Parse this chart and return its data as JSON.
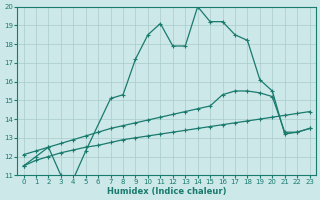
{
  "xlabel": "Humidex (Indice chaleur)",
  "line_color": "#1a7a6e",
  "bg_color": "#cce8e8",
  "grid_color": "#aacccc",
  "ylim": [
    11,
    20
  ],
  "xlim": [
    -0.5,
    23.5
  ],
  "yticks": [
    11,
    12,
    13,
    14,
    15,
    16,
    17,
    18,
    19,
    20
  ],
  "xticks": [
    0,
    1,
    2,
    3,
    4,
    5,
    6,
    7,
    8,
    9,
    10,
    11,
    12,
    13,
    14,
    15,
    16,
    17,
    18,
    19,
    20,
    21,
    22,
    23
  ],
  "upper_x": [
    0,
    1,
    2,
    3,
    4,
    5,
    7,
    8,
    9,
    10,
    11,
    12,
    13,
    14,
    15,
    16,
    17,
    18,
    19,
    20,
    21,
    22,
    23
  ],
  "upper_y": [
    11.5,
    12.0,
    12.5,
    11.0,
    10.8,
    12.3,
    15.1,
    15.3,
    17.2,
    18.5,
    19.1,
    17.9,
    17.9,
    20.0,
    19.2,
    19.2,
    18.5,
    18.2,
    16.1,
    15.5,
    13.2,
    13.3,
    13.5
  ],
  "mid_x": [
    0,
    1,
    2,
    3,
    4,
    5,
    6,
    7,
    8,
    9,
    10,
    11,
    12,
    13,
    14,
    15,
    16,
    17,
    18,
    19,
    20,
    21,
    22,
    23
  ],
  "mid_y": [
    12.1,
    12.3,
    12.5,
    12.7,
    12.9,
    13.1,
    13.3,
    13.5,
    13.65,
    13.8,
    13.95,
    14.1,
    14.25,
    14.4,
    14.55,
    14.7,
    15.3,
    15.5,
    15.5,
    15.4,
    15.2,
    13.3,
    13.3,
    13.5
  ],
  "low_x": [
    0,
    1,
    2,
    3,
    4,
    5,
    6,
    7,
    8,
    9,
    10,
    11,
    12,
    13,
    14,
    15,
    16,
    17,
    18,
    19,
    20,
    21,
    22,
    23
  ],
  "low_y": [
    11.5,
    11.8,
    12.0,
    12.2,
    12.35,
    12.5,
    12.6,
    12.75,
    12.9,
    13.0,
    13.1,
    13.2,
    13.3,
    13.4,
    13.5,
    13.6,
    13.7,
    13.8,
    13.9,
    14.0,
    14.1,
    14.2,
    14.3,
    14.4
  ]
}
